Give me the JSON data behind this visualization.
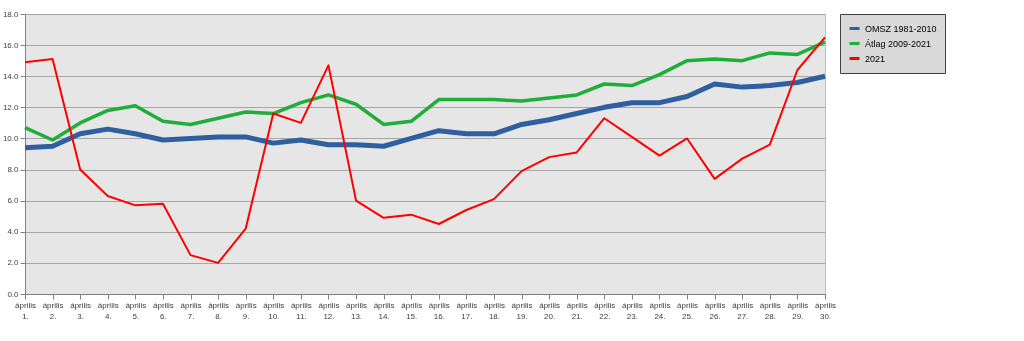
{
  "chart_data": {
    "type": "line",
    "categories": [
      "április 1.",
      "április 2.",
      "április 3.",
      "április 4.",
      "április 5.",
      "április 6.",
      "április 7.",
      "április 8.",
      "április 9.",
      "április 10.",
      "április 11.",
      "április 12.",
      "április 13.",
      "április 14.",
      "április 15.",
      "április 16.",
      "április 17.",
      "április 18.",
      "április 19.",
      "április 20.",
      "április 21.",
      "április 22.",
      "április 23.",
      "április 24.",
      "április 25.",
      "április 26.",
      "április 27.",
      "április 28.",
      "április 29.",
      "április 30."
    ],
    "series": [
      {
        "name": "OMSZ 1981-2010",
        "color": "#2e5f9e",
        "values": [
          9.4,
          9.5,
          10.3,
          10.6,
          10.3,
          9.9,
          10.0,
          10.1,
          10.1,
          9.7,
          9.9,
          9.6,
          9.6,
          9.5,
          10.0,
          10.5,
          10.3,
          10.3,
          10.9,
          11.2,
          11.6,
          12.0,
          12.3,
          12.3,
          12.7,
          13.5,
          13.3,
          13.4,
          13.6,
          14.0
        ]
      },
      {
        "name": "Átlag 2009-2021",
        "color": "#1fae3a",
        "values": [
          10.7,
          9.9,
          11.0,
          11.8,
          12.1,
          11.1,
          10.9,
          11.3,
          11.7,
          11.6,
          12.3,
          12.8,
          12.2,
          10.9,
          11.1,
          12.5,
          12.5,
          12.5,
          12.4,
          12.6,
          12.8,
          13.5,
          13.4,
          14.1,
          15.0,
          15.1,
          15.0,
          15.5,
          15.4,
          16.2
        ]
      },
      {
        "name": "2021",
        "color": "#ff0000",
        "values": [
          14.9,
          15.1,
          8.0,
          6.3,
          5.7,
          5.8,
          2.5,
          2.0,
          4.2,
          11.6,
          11.0,
          14.7,
          6.0,
          4.9,
          5.1,
          4.5,
          5.4,
          6.1,
          7.9,
          8.8,
          9.1,
          11.3,
          10.1,
          8.9,
          10.0,
          7.4,
          8.7,
          9.6,
          14.4,
          16.5
        ]
      }
    ],
    "ylim": [
      0,
      18
    ],
    "yticks": [
      {
        "value": 0,
        "label": "0.0"
      },
      {
        "value": 2,
        "label": "2.0"
      },
      {
        "value": 4,
        "label": "4.0"
      },
      {
        "value": 6,
        "label": "6.0"
      },
      {
        "value": 8,
        "label": "8.0"
      },
      {
        "value": 10,
        "label": "10.0"
      },
      {
        "value": 12,
        "label": "12.0"
      },
      {
        "value": 14,
        "label": "14.0"
      },
      {
        "value": 16,
        "label": "16.0"
      },
      {
        "value": 18,
        "label": "18.0"
      }
    ],
    "grid": "y",
    "legend": "right",
    "marker": "none",
    "line_style": "solid"
  }
}
